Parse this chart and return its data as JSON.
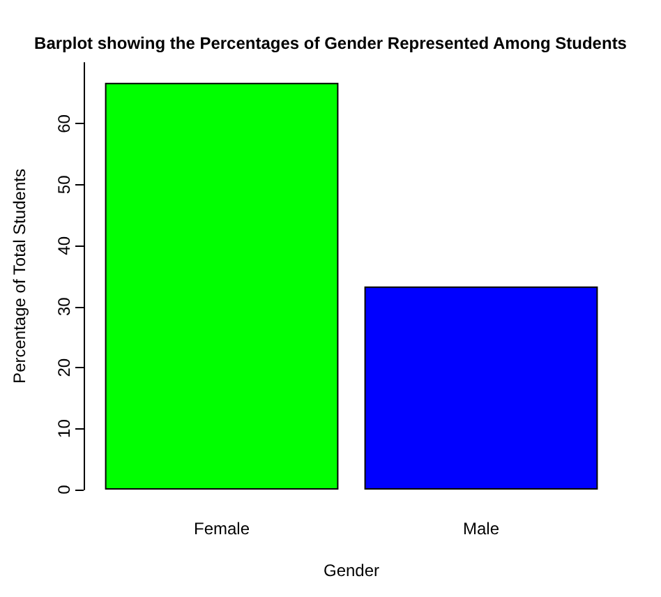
{
  "chart_data": {
    "type": "bar",
    "title": "Barplot showing the Percentages of Gender Represented Among Students",
    "xlabel": "Gender",
    "ylabel": "Percentage of Total Students",
    "categories": [
      "Female",
      "Male"
    ],
    "values": [
      66.7,
      33.3
    ],
    "colors": [
      "#00ff00",
      "#0000ff"
    ],
    "ylim": [
      0,
      70
    ],
    "yticks": [
      0,
      10,
      20,
      30,
      40,
      50,
      60
    ],
    "grid": false
  }
}
